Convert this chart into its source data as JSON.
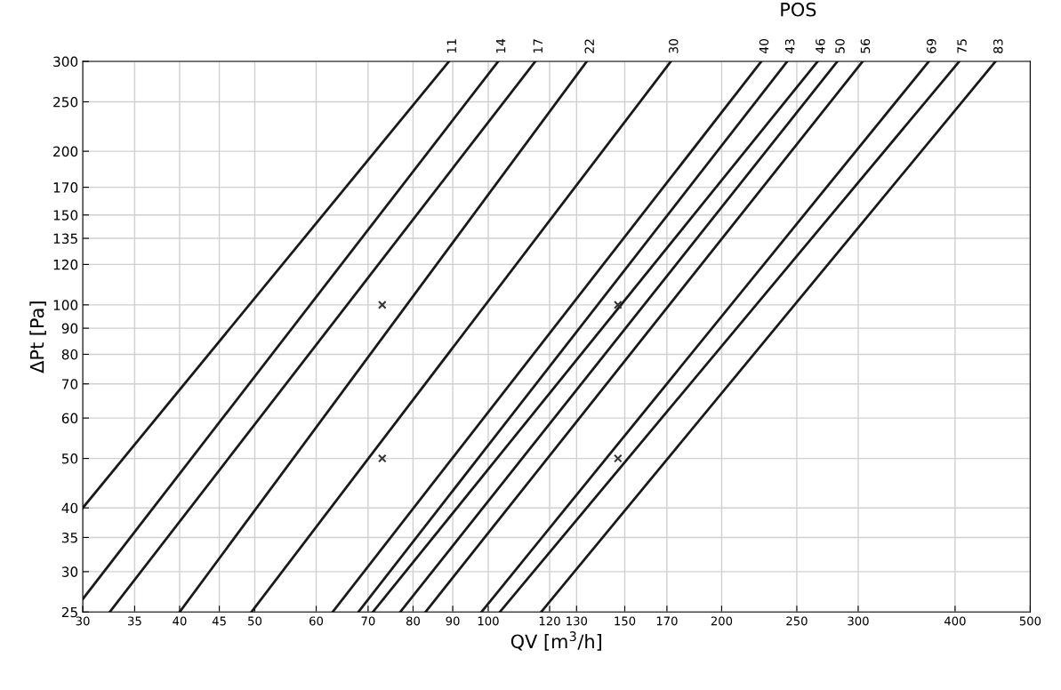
{
  "chart_data": {
    "type": "line",
    "xlabel": "QV [m$^{3}$/h]",
    "ylabel": "ΔPt [Pa]",
    "x2label": "POS",
    "log": "xy",
    "grid": true,
    "legend": false,
    "marker": "none",
    "line_style": "solid",
    "xlim": [
      30,
      500
    ],
    "ylim": [
      25,
      300
    ],
    "xticks": [
      30,
      35,
      40,
      45,
      50,
      60,
      70,
      80,
      90,
      100,
      120,
      130,
      150,
      170,
      200,
      250,
      300,
      400,
      500
    ],
    "yticks": [
      25,
      30,
      35,
      40,
      50,
      60,
      70,
      80,
      90,
      100,
      120,
      135,
      150,
      170,
      200,
      250,
      300
    ],
    "series": [
      {
        "name": "11",
        "color": "#1a1a1a",
        "x": [
          30,
          89
        ],
        "values": [
          40,
          300
        ]
      },
      {
        "name": "14",
        "color": "#1a1a1a",
        "x": [
          30,
          103
        ],
        "values": [
          26.5,
          300
        ]
      },
      {
        "name": "17",
        "color": "#1a1a1a",
        "x": [
          32.5,
          115
        ],
        "values": [
          25,
          300
        ]
      },
      {
        "name": "22",
        "color": "#1a1a1a",
        "x": [
          40,
          134
        ],
        "values": [
          25,
          300
        ]
      },
      {
        "name": "30",
        "color": "#1a1a1a",
        "x": [
          49.5,
          172
        ],
        "values": [
          25,
          300
        ]
      },
      {
        "name": "40",
        "color": "#1a1a1a",
        "x": [
          63,
          225
        ],
        "values": [
          25,
          300
        ]
      },
      {
        "name": "43",
        "color": "#1a1a1a",
        "x": [
          68,
          243
        ],
        "values": [
          25,
          300
        ]
      },
      {
        "name": "46",
        "color": "#1a1a1a",
        "x": [
          71,
          266
        ],
        "values": [
          25,
          300
        ]
      },
      {
        "name": "50",
        "color": "#1a1a1a",
        "x": [
          77,
          282
        ],
        "values": [
          25,
          300
        ]
      },
      {
        "name": "56",
        "color": "#1a1a1a",
        "x": [
          83,
          304
        ],
        "values": [
          25,
          300
        ]
      },
      {
        "name": "69",
        "color": "#1a1a1a",
        "x": [
          98,
          370
        ],
        "values": [
          25,
          300
        ]
      },
      {
        "name": "75",
        "color": "#1a1a1a",
        "x": [
          103.5,
          405
        ],
        "values": [
          25,
          300
        ]
      },
      {
        "name": "83",
        "color": "#1a1a1a",
        "x": [
          117,
          451
        ],
        "values": [
          25,
          300
        ]
      },
      {
        "type": "scatter",
        "marker": "cross",
        "color": "#333333",
        "x": [
          73,
          73,
          147,
          147
        ],
        "values": [
          100,
          50,
          100,
          50
        ]
      }
    ]
  }
}
